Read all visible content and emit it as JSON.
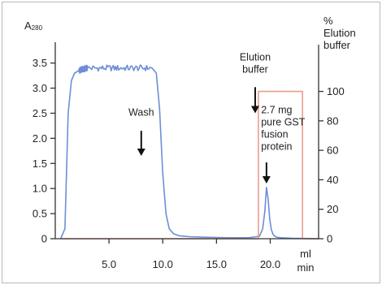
{
  "chart_data": {
    "type": "line",
    "xlabel_lines": [
      "ml",
      "min"
    ],
    "ylabel_left": "A280",
    "ylabel_right_lines": [
      "%",
      "Elution",
      "buffer"
    ],
    "x_ticks": [
      5.0,
      10.0,
      15.0,
      20.0
    ],
    "x_tick_labels": [
      "5.0",
      "10.0",
      "15.0",
      "20.0"
    ],
    "y_left_ticks": [
      0,
      0.5,
      1.0,
      1.5,
      2.0,
      2.5,
      3.0,
      3.5
    ],
    "y_left_tick_labels": [
      "0",
      "0.5",
      "1.0",
      "1.5",
      "2.0",
      "2.5",
      "3.0",
      "3.5"
    ],
    "y_right_ticks": [
      0,
      20,
      40,
      60,
      80,
      100
    ],
    "y_right_tick_labels": [
      "0",
      "20",
      "40",
      "60",
      "80",
      "100"
    ],
    "xlim": [
      0,
      24.5
    ],
    "ylim_left": [
      0,
      3.85
    ],
    "ylim_right": [
      0,
      140
    ],
    "series": [
      {
        "axis": "left",
        "color": "#6d8ed6",
        "x": [
          0.5,
          0.9,
          1.2,
          1.5,
          1.8,
          2.2,
          2.6,
          3.0,
          9.0,
          9.4,
          9.7,
          10.0,
          10.3,
          10.6,
          11.0,
          11.5,
          12.5,
          14.0,
          16.0,
          18.0,
          19.0,
          19.3,
          19.5,
          19.65,
          19.8,
          19.95,
          20.1,
          20.3,
          20.6,
          21.0,
          22.0,
          24.5
        ],
        "y": [
          0.0,
          0.2,
          2.5,
          3.15,
          3.3,
          3.35,
          3.38,
          3.4,
          3.4,
          3.3,
          2.6,
          1.3,
          0.5,
          0.2,
          0.1,
          0.06,
          0.04,
          0.03,
          0.02,
          0.02,
          0.05,
          0.2,
          0.55,
          1.02,
          0.8,
          0.4,
          0.18,
          0.07,
          0.03,
          0.02,
          0.01,
          0.0
        ],
        "noise": {
          "x_range": [
            2.0,
            9.2
          ],
          "amplitude": 0.06
        }
      },
      {
        "axis": "right",
        "color": "#ea9c8e",
        "x": [
          0.5,
          18.9,
          18.9,
          23.0,
          23.0,
          24.5
        ],
        "y": [
          0,
          0,
          100,
          100,
          0,
          0
        ]
      }
    ],
    "annotations": [
      {
        "lines": [
          "Wash"
        ],
        "x": 8.0,
        "y": 2.45,
        "arrow_from": 2.15,
        "arrow_to": 1.65
      },
      {
        "lines": [
          "Elution",
          "buffer"
        ],
        "x": 18.6,
        "y": 3.55,
        "arrow_from": 3.02,
        "arrow_to": 2.5
      },
      {
        "lines": [
          "2.7 mg",
          "pure GST",
          "fusion",
          "protein"
        ],
        "x": 19.3,
        "y": 2.5,
        "arrow_from": 1.52,
        "arrow_to": 1.1
      }
    ]
  }
}
